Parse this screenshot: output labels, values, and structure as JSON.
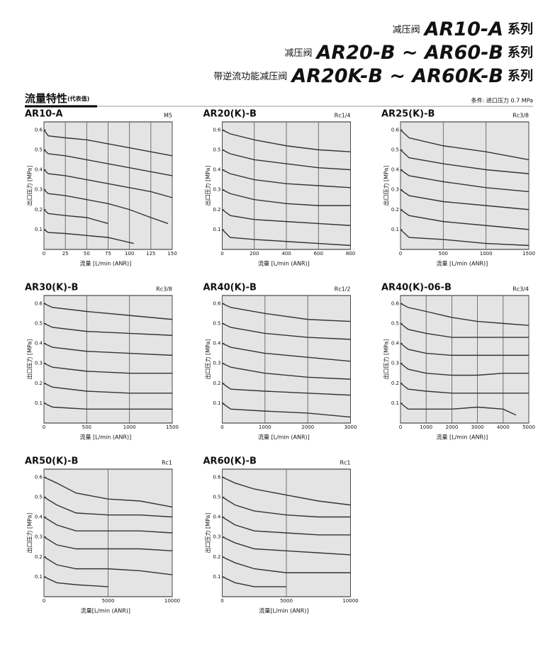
{
  "header": {
    "lines": [
      {
        "prefix": "减压阀",
        "model": "AR10-A",
        "suffix": "系列"
      },
      {
        "prefix": "减压阀",
        "model": "AR20-B ~ AR60-B",
        "suffix": "系列"
      },
      {
        "prefix": "带逆流功能减压阀",
        "model": "AR20K-B ~ AR60K-B",
        "suffix": "系列"
      }
    ],
    "section_title": "流量特性",
    "section_note": "(代表值)",
    "condition": "条件: 进口压力 0.7 MPa"
  },
  "chart_data": [
    {
      "type": "line",
      "title": "AR10-A",
      "port": "M5",
      "xlabel": "流量 [L/min (ANR)]",
      "ylabel": "出口压力 [MPa]",
      "xlim": [
        0,
        150
      ],
      "ylim": [
        0,
        0.64
      ],
      "xticks": [
        0,
        25,
        50,
        75,
        100,
        125,
        150
      ],
      "yticks": [
        0.1,
        0.2,
        0.3,
        0.4,
        0.5,
        0.6
      ],
      "grid": true,
      "color": "#333333",
      "series": [
        {
          "x": [
            0,
            5,
            25,
            50,
            75,
            100,
            125,
            150
          ],
          "values": [
            0.6,
            0.57,
            0.56,
            0.55,
            0.53,
            0.51,
            0.49,
            0.47
          ]
        },
        {
          "x": [
            0,
            5,
            25,
            50,
            75,
            100,
            125,
            150
          ],
          "values": [
            0.5,
            0.48,
            0.47,
            0.45,
            0.43,
            0.41,
            0.39,
            0.37
          ]
        },
        {
          "x": [
            0,
            5,
            25,
            50,
            75,
            100,
            125,
            150
          ],
          "values": [
            0.4,
            0.38,
            0.37,
            0.35,
            0.33,
            0.31,
            0.29,
            0.26
          ]
        },
        {
          "x": [
            0,
            5,
            25,
            50,
            75,
            100,
            125,
            145
          ],
          "values": [
            0.3,
            0.28,
            0.27,
            0.25,
            0.23,
            0.2,
            0.16,
            0.13
          ]
        },
        {
          "x": [
            0,
            5,
            25,
            50,
            75
          ],
          "values": [
            0.2,
            0.18,
            0.17,
            0.16,
            0.13
          ]
        },
        {
          "x": [
            0,
            5,
            25,
            50,
            75,
            105
          ],
          "values": [
            0.1,
            0.085,
            0.08,
            0.07,
            0.06,
            0.03
          ]
        }
      ]
    },
    {
      "type": "line",
      "title": "AR20(K)-B",
      "port": "Rc1/4",
      "xlabel": "流量 [L/min (ANR)]",
      "ylabel": "出口压力 [MPa]",
      "xlim": [
        0,
        800
      ],
      "ylim": [
        0,
        0.64
      ],
      "xticks": [
        0,
        200,
        400,
        600,
        800
      ],
      "yticks": [
        0.1,
        0.2,
        0.3,
        0.4,
        0.5,
        0.6
      ],
      "grid": true,
      "color": "#333333",
      "series": [
        {
          "x": [
            0,
            50,
            200,
            400,
            600,
            800
          ],
          "values": [
            0.6,
            0.58,
            0.55,
            0.52,
            0.5,
            0.49
          ]
        },
        {
          "x": [
            0,
            50,
            200,
            400,
            600,
            800
          ],
          "values": [
            0.5,
            0.48,
            0.45,
            0.43,
            0.41,
            0.4
          ]
        },
        {
          "x": [
            0,
            50,
            200,
            400,
            600,
            800
          ],
          "values": [
            0.4,
            0.38,
            0.35,
            0.33,
            0.32,
            0.31
          ]
        },
        {
          "x": [
            0,
            50,
            200,
            400,
            600,
            800
          ],
          "values": [
            0.3,
            0.28,
            0.25,
            0.23,
            0.22,
            0.22
          ]
        },
        {
          "x": [
            0,
            50,
            200,
            400,
            600,
            800
          ],
          "values": [
            0.2,
            0.17,
            0.15,
            0.14,
            0.13,
            0.12
          ]
        },
        {
          "x": [
            0,
            50,
            200,
            400,
            600,
            800
          ],
          "values": [
            0.1,
            0.06,
            0.05,
            0.04,
            0.03,
            0.02
          ]
        }
      ]
    },
    {
      "type": "line",
      "title": "AR25(K)-B",
      "port": "Rc3/8",
      "xlabel": "流量 [L/min (ANR)]",
      "ylabel": "出口压力 [MPa]",
      "xlim": [
        0,
        1500
      ],
      "ylim": [
        0,
        0.64
      ],
      "xticks": [
        0,
        500,
        1000,
        1500
      ],
      "yticks": [
        0.1,
        0.2,
        0.3,
        0.4,
        0.5,
        0.6
      ],
      "grid": true,
      "color": "#333333",
      "series": [
        {
          "x": [
            0,
            100,
            500,
            1000,
            1500
          ],
          "values": [
            0.6,
            0.56,
            0.52,
            0.49,
            0.45
          ]
        },
        {
          "x": [
            0,
            100,
            500,
            1000,
            1500
          ],
          "values": [
            0.5,
            0.46,
            0.43,
            0.4,
            0.38
          ]
        },
        {
          "x": [
            0,
            100,
            500,
            1000,
            1500
          ],
          "values": [
            0.4,
            0.37,
            0.34,
            0.31,
            0.29
          ]
        },
        {
          "x": [
            0,
            100,
            500,
            1000,
            1500
          ],
          "values": [
            0.3,
            0.27,
            0.24,
            0.22,
            0.2
          ]
        },
        {
          "x": [
            0,
            100,
            500,
            1000,
            1500
          ],
          "values": [
            0.2,
            0.17,
            0.14,
            0.12,
            0.1
          ]
        },
        {
          "x": [
            0,
            100,
            500,
            1000,
            1500
          ],
          "values": [
            0.1,
            0.06,
            0.05,
            0.03,
            0.02
          ]
        }
      ]
    },
    {
      "type": "line",
      "title": "AR30(K)-B",
      "port": "Rc3/8",
      "xlabel": "流量 [L/min (ANR)]",
      "ylabel": "出口压力 [MPa]",
      "xlim": [
        0,
        1500
      ],
      "ylim": [
        0,
        0.64
      ],
      "xticks": [
        0,
        500,
        1000,
        1500
      ],
      "yticks": [
        0.1,
        0.2,
        0.3,
        0.4,
        0.5,
        0.6
      ],
      "grid": true,
      "color": "#333333",
      "series": [
        {
          "x": [
            0,
            100,
            500,
            1000,
            1500
          ],
          "values": [
            0.6,
            0.58,
            0.56,
            0.54,
            0.52
          ]
        },
        {
          "x": [
            0,
            100,
            500,
            1000,
            1500
          ],
          "values": [
            0.5,
            0.48,
            0.46,
            0.45,
            0.44
          ]
        },
        {
          "x": [
            0,
            100,
            500,
            1000,
            1500
          ],
          "values": [
            0.4,
            0.38,
            0.36,
            0.35,
            0.34
          ]
        },
        {
          "x": [
            0,
            100,
            500,
            1000,
            1500
          ],
          "values": [
            0.3,
            0.28,
            0.26,
            0.25,
            0.25
          ]
        },
        {
          "x": [
            0,
            100,
            500,
            1000,
            1500
          ],
          "values": [
            0.2,
            0.18,
            0.16,
            0.15,
            0.15
          ]
        },
        {
          "x": [
            0,
            100,
            500,
            1000,
            1500
          ],
          "values": [
            0.1,
            0.08,
            0.07,
            0.07,
            0.07
          ]
        }
      ]
    },
    {
      "type": "line",
      "title": "AR40(K)-B",
      "port": "Rc1/2",
      "xlabel": "流量 [L/min (ANR)]",
      "ylabel": "出口压力 [MPa]",
      "xlim": [
        0,
        3000
      ],
      "ylim": [
        0,
        0.64
      ],
      "xticks": [
        0,
        1000,
        2000,
        3000
      ],
      "yticks": [
        0.1,
        0.2,
        0.3,
        0.4,
        0.5,
        0.6
      ],
      "grid": true,
      "color": "#333333",
      "series": [
        {
          "x": [
            0,
            200,
            1000,
            2000,
            3000
          ],
          "values": [
            0.6,
            0.58,
            0.55,
            0.52,
            0.51
          ]
        },
        {
          "x": [
            0,
            200,
            1000,
            2000,
            3000
          ],
          "values": [
            0.5,
            0.48,
            0.45,
            0.43,
            0.42
          ]
        },
        {
          "x": [
            0,
            200,
            1000,
            2000,
            3000
          ],
          "values": [
            0.4,
            0.38,
            0.35,
            0.33,
            0.31
          ]
        },
        {
          "x": [
            0,
            200,
            1000,
            2000,
            3000
          ],
          "values": [
            0.3,
            0.28,
            0.25,
            0.23,
            0.22
          ]
        },
        {
          "x": [
            0,
            200,
            1000,
            2000,
            3000
          ],
          "values": [
            0.2,
            0.17,
            0.16,
            0.15,
            0.14
          ]
        },
        {
          "x": [
            0,
            200,
            1000,
            2000,
            3000
          ],
          "values": [
            0.1,
            0.07,
            0.06,
            0.05,
            0.03
          ]
        }
      ]
    },
    {
      "type": "line",
      "title": "AR40(K)-06-B",
      "port": "Rc3/4",
      "xlabel": "流量 [L/min (ANR)]",
      "ylabel": "出口压力 [MPa]",
      "xlim": [
        0,
        5000
      ],
      "ylim": [
        0,
        0.64
      ],
      "xticks": [
        0,
        1000,
        2000,
        3000,
        4000,
        5000
      ],
      "yticks": [
        0.1,
        0.2,
        0.3,
        0.4,
        0.5,
        0.6
      ],
      "grid": true,
      "color": "#333333",
      "series": [
        {
          "x": [
            0,
            300,
            1000,
            2000,
            3000,
            4000,
            5000
          ],
          "values": [
            0.6,
            0.58,
            0.56,
            0.53,
            0.51,
            0.5,
            0.49
          ]
        },
        {
          "x": [
            0,
            300,
            1000,
            2000,
            3000,
            4000,
            5000
          ],
          "values": [
            0.5,
            0.47,
            0.45,
            0.43,
            0.43,
            0.43,
            0.43
          ]
        },
        {
          "x": [
            0,
            300,
            1000,
            2000,
            3000,
            4000,
            5000
          ],
          "values": [
            0.4,
            0.37,
            0.35,
            0.34,
            0.34,
            0.34,
            0.34
          ]
        },
        {
          "x": [
            0,
            300,
            1000,
            2000,
            3000,
            4000,
            5000
          ],
          "values": [
            0.3,
            0.27,
            0.25,
            0.24,
            0.24,
            0.25,
            0.25
          ]
        },
        {
          "x": [
            0,
            300,
            1000,
            2000,
            3000,
            4000,
            5000
          ],
          "values": [
            0.2,
            0.17,
            0.16,
            0.15,
            0.15,
            0.15,
            0.15
          ]
        },
        {
          "x": [
            0,
            300,
            1000,
            2000,
            3000,
            4000,
            4500
          ],
          "values": [
            0.1,
            0.07,
            0.07,
            0.07,
            0.08,
            0.07,
            0.04
          ]
        }
      ]
    },
    {
      "type": "line",
      "title": "AR50(K)-B",
      "port": "Rc1",
      "xlabel": "流量[L/min (ANR)]",
      "ylabel": "出口压力 [MPa]",
      "xlim": [
        0,
        10000
      ],
      "ylim": [
        0,
        0.64
      ],
      "xticks": [
        0,
        5000,
        10000
      ],
      "yticks": [
        0.1,
        0.2,
        0.3,
        0.4,
        0.5,
        0.6
      ],
      "grid": true,
      "color": "#333333",
      "series": [
        {
          "x": [
            0,
            1000,
            2500,
            5000,
            7500,
            10000
          ],
          "values": [
            0.6,
            0.57,
            0.52,
            0.49,
            0.48,
            0.45
          ]
        },
        {
          "x": [
            0,
            1000,
            2500,
            5000,
            7500,
            10000
          ],
          "values": [
            0.5,
            0.46,
            0.42,
            0.41,
            0.41,
            0.4
          ]
        },
        {
          "x": [
            0,
            1000,
            2500,
            5000,
            7500,
            10000
          ],
          "values": [
            0.4,
            0.36,
            0.33,
            0.33,
            0.33,
            0.32
          ]
        },
        {
          "x": [
            0,
            1000,
            2500,
            5000,
            7500,
            10000
          ],
          "values": [
            0.3,
            0.26,
            0.24,
            0.24,
            0.24,
            0.23
          ]
        },
        {
          "x": [
            0,
            1000,
            2500,
            5000,
            7500,
            10000
          ],
          "values": [
            0.2,
            0.16,
            0.14,
            0.14,
            0.13,
            0.11
          ]
        },
        {
          "x": [
            0,
            1000,
            2500,
            5000
          ],
          "values": [
            0.1,
            0.07,
            0.06,
            0.05
          ]
        }
      ]
    },
    {
      "type": "line",
      "title": "AR60(K)-B",
      "port": "Rc1",
      "xlabel": "流量[L/min (ANR)]",
      "ylabel": "出口压力 [MPa]",
      "xlim": [
        0,
        10000
      ],
      "ylim": [
        0,
        0.64
      ],
      "xticks": [
        0,
        5000,
        10000
      ],
      "yticks": [
        0.1,
        0.2,
        0.3,
        0.4,
        0.5,
        0.6
      ],
      "grid": true,
      "color": "#333333",
      "series": [
        {
          "x": [
            0,
            1000,
            2500,
            5000,
            7500,
            10000
          ],
          "values": [
            0.6,
            0.57,
            0.54,
            0.51,
            0.48,
            0.46
          ]
        },
        {
          "x": [
            0,
            1000,
            2500,
            5000,
            7500,
            10000
          ],
          "values": [
            0.5,
            0.46,
            0.43,
            0.41,
            0.4,
            0.4
          ]
        },
        {
          "x": [
            0,
            1000,
            2500,
            5000,
            7500,
            10000
          ],
          "values": [
            0.4,
            0.36,
            0.33,
            0.32,
            0.31,
            0.31
          ]
        },
        {
          "x": [
            0,
            1000,
            2500,
            5000,
            7500,
            10000
          ],
          "values": [
            0.3,
            0.27,
            0.24,
            0.23,
            0.22,
            0.21
          ]
        },
        {
          "x": [
            0,
            1000,
            2500,
            5000,
            7500,
            10000
          ],
          "values": [
            0.2,
            0.17,
            0.14,
            0.12,
            0.12,
            0.12
          ]
        },
        {
          "x": [
            0,
            1000,
            2500,
            5000
          ],
          "values": [
            0.1,
            0.07,
            0.05,
            0.05
          ]
        }
      ]
    }
  ]
}
